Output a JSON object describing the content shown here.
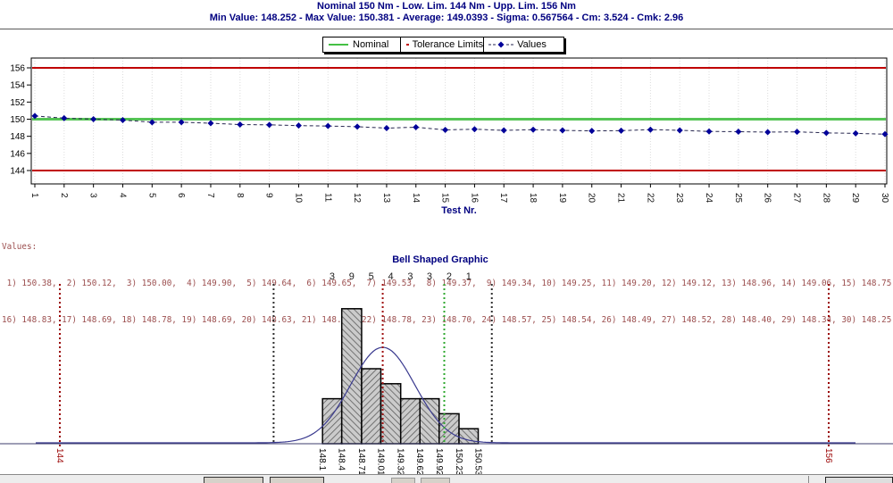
{
  "header": {
    "line1": "Nominal 150 Nm - Low. Lim. 144 Nm - Upp. Lim. 156 Nm",
    "line2": "Min Value: 148.252 - Max Value: 150.381 - Average: 149.0393 - Sigma: 0.567564 - Cm: 3.524 - Cmk: 2.96"
  },
  "legend": {
    "items": [
      {
        "label": "Nominal",
        "color": "#44c044"
      },
      {
        "label": "Tolerance Limits",
        "color": "#c00000"
      },
      {
        "label": "Values",
        "color": "#000099"
      }
    ]
  },
  "colors": {
    "header_navy": "#000080",
    "tolerance_red": "#c00000",
    "nominal_green": "#55c455",
    "values_navy": "#000099",
    "series_dash": "#26264f",
    "average_line": "#a01010",
    "sigma_line": "#303030",
    "limit_dotted": "#990000",
    "values_text": "#9c4f4f",
    "bell_curve": "#3a3a8f"
  },
  "values_block": {
    "title": "Values:",
    "line1": " 1) 150.38,  2) 150.12,  3) 150.00,  4) 149.90,  5) 149.64,  6) 149.65,  7) 149.53,  8) 149.37,  9) 149.34, 10) 149.25, 11) 149.20, 12) 149.12, 13) 148.96, 14) 149.06, 15) 148.75",
    "line2": "16) 148.83, 17) 148.69, 18) 148.78, 19) 148.69, 20) 148.63, 21) 148.66, 22) 148.78, 23) 148.70, 24) 148.57, 25) 148.54, 26) 148.49, 27) 148.52, 28) 148.40, 29) 148.34, 30) 148.25"
  },
  "chart_data": [
    {
      "type": "line",
      "title": "",
      "xlabel": "Test Nr.",
      "x": [
        1,
        2,
        3,
        4,
        5,
        6,
        7,
        8,
        9,
        10,
        11,
        12,
        13,
        14,
        15,
        16,
        17,
        18,
        19,
        20,
        21,
        22,
        23,
        24,
        25,
        26,
        27,
        28,
        29,
        30
      ],
      "series": [
        {
          "name": "Values",
          "values": [
            150.38,
            150.12,
            150.0,
            149.9,
            149.64,
            149.65,
            149.53,
            149.37,
            149.34,
            149.25,
            149.2,
            149.12,
            148.96,
            149.06,
            148.75,
            148.83,
            148.69,
            148.78,
            148.69,
            148.63,
            148.66,
            148.78,
            148.7,
            148.57,
            148.54,
            148.49,
            148.52,
            148.4,
            148.34,
            148.25
          ]
        }
      ],
      "nominal": 150,
      "lower_limit": 144,
      "upper_limit": 156,
      "yticks": [
        144,
        146,
        148,
        150,
        152,
        154,
        156
      ],
      "ylim": [
        142.5,
        157.3
      ],
      "grid": "vertical-dotted",
      "legend_position": "top"
    },
    {
      "type": "bar",
      "title": "Bell Shaped Graphic",
      "bin_edges": [
        "148.1",
        "148.4",
        "148.71",
        "149.01",
        "149.32",
        "149.62",
        "149.92",
        "150.23",
        "150.53"
      ],
      "counts": [
        3,
        9,
        5,
        4,
        3,
        3,
        2,
        1
      ],
      "mean": 149.0393,
      "sigma": 0.567564,
      "nominal": 150,
      "lower_limit": 144,
      "upper_limit": 156,
      "limit_labels": [
        "144",
        "156"
      ],
      "xlim": [
        144,
        156
      ],
      "overlay": "normal-curve"
    }
  ]
}
